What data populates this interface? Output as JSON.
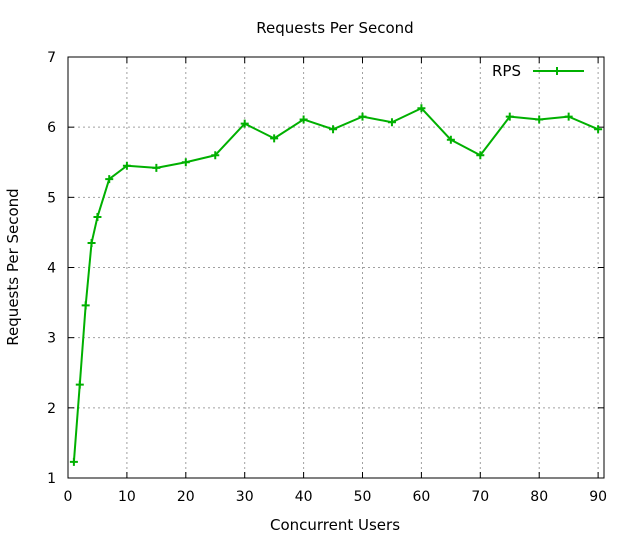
{
  "chart_data": {
    "type": "line",
    "title": "Requests Per Second",
    "xlabel": "Concurrent Users",
    "ylabel": "Requests Per Second",
    "xlim": [
      0,
      91
    ],
    "ylim": [
      1,
      7
    ],
    "xticks": [
      0,
      10,
      20,
      30,
      40,
      50,
      60,
      70,
      80,
      90
    ],
    "yticks": [
      1,
      2,
      3,
      4,
      5,
      6,
      7
    ],
    "grid": true,
    "legend_position": "top-right",
    "series": [
      {
        "name": "RPS",
        "color": "#00b000",
        "marker": "plus",
        "x": [
          1,
          2,
          3,
          4,
          5,
          7,
          10,
          15,
          20,
          25,
          30,
          35,
          40,
          45,
          50,
          55,
          60,
          65,
          70,
          75,
          80,
          85,
          90
        ],
        "y": [
          1.23,
          2.33,
          3.46,
          4.35,
          4.72,
          5.26,
          5.45,
          5.42,
          5.5,
          5.6,
          6.05,
          5.84,
          6.11,
          5.97,
          6.15,
          6.07,
          6.27,
          5.82,
          5.6,
          6.15,
          6.11,
          6.15,
          5.97
        ]
      }
    ]
  }
}
